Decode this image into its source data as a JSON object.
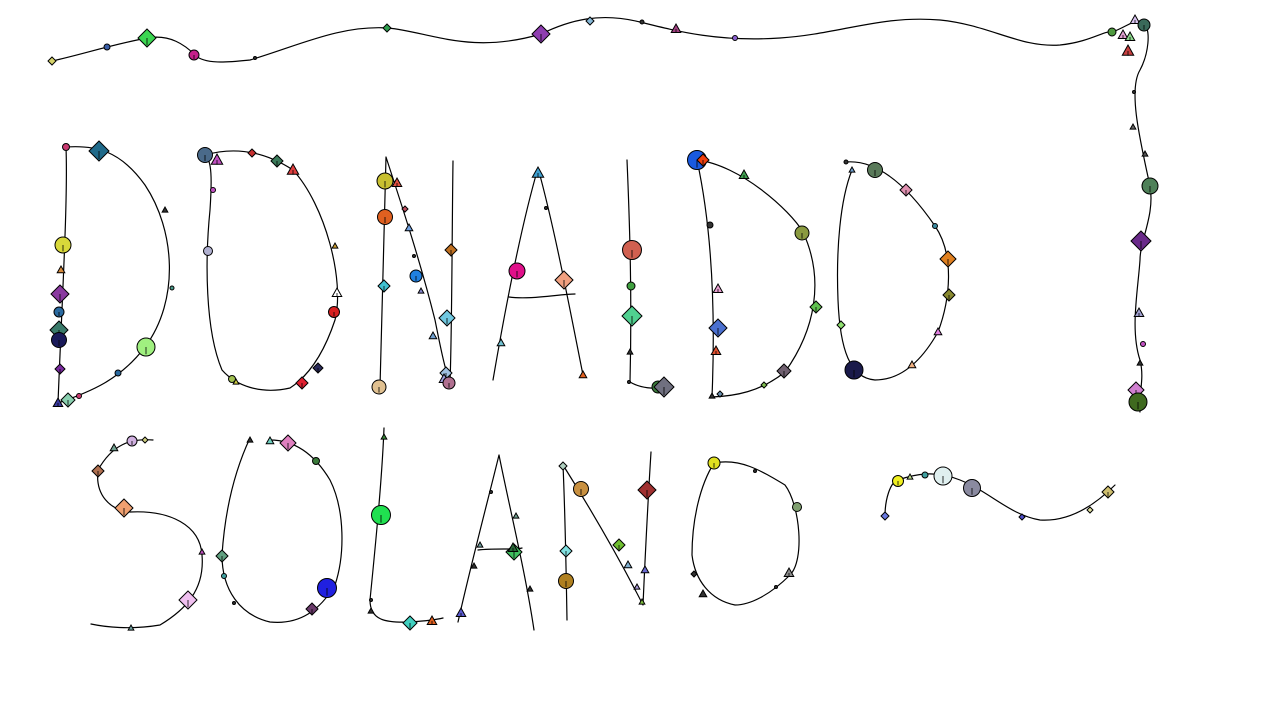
{
  "page": {
    "background": "#ffffff",
    "ink_color": "#000000",
    "description_visible_text": "",
    "handwritten_text": "DONALD SOLANO"
  }
}
